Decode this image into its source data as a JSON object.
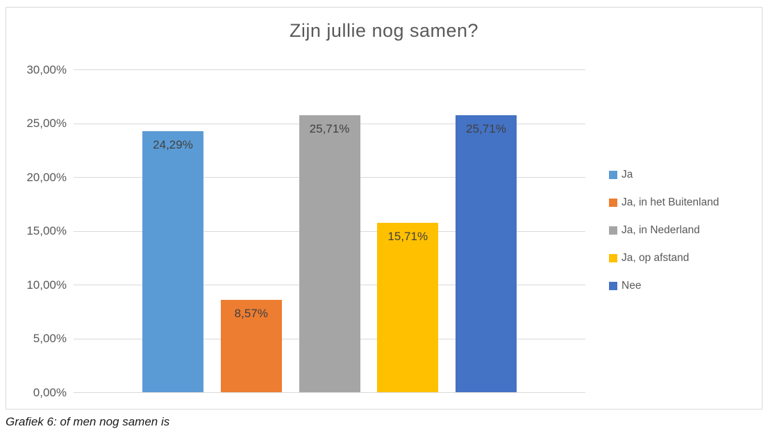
{
  "title": "Zijn jullie nog samen?",
  "caption": "Grafiek 6: of men nog samen is",
  "chart_data": {
    "type": "bar",
    "title": "Zijn jullie nog samen?",
    "categories": [
      ""
    ],
    "series": [
      {
        "name": "Ja",
        "value": 24.29,
        "label": "24,29%",
        "color": "#5B9BD5"
      },
      {
        "name": "Ja, in het Buitenland",
        "value": 8.57,
        "label": "8,57%",
        "color": "#ED7D31"
      },
      {
        "name": "Ja, in Nederland",
        "value": 25.71,
        "label": "25,71%",
        "color": "#A5A5A5"
      },
      {
        "name": "Ja, op afstand",
        "value": 15.71,
        "label": "15,71%",
        "color": "#FFC000"
      },
      {
        "name": "Nee",
        "value": 25.71,
        "label": "25,71%",
        "color": "#4472C4"
      }
    ],
    "xlabel": "",
    "ylabel": "",
    "ylim": [
      0,
      30
    ],
    "ytick_step": 5,
    "ytick_labels": [
      "0,00%",
      "5,00%",
      "10,00%",
      "15,00%",
      "20,00%",
      "25,00%",
      "30,00%"
    ],
    "grid": true,
    "legend_position": "right",
    "legend_entries": [
      "Ja",
      "Ja, in het Buitenland",
      "Ja, in Nederland",
      "Ja, op afstand",
      "Nee"
    ]
  },
  "colors": {
    "bar_blue": "#5B9BD5",
    "bar_orange": "#ED7D31",
    "bar_gray": "#A5A5A5",
    "bar_yellow": "#FFC000",
    "bar_dark_blue": "#4472C4",
    "gridline": "#D9D9D9",
    "frame_border": "#D9D9D9",
    "title_text": "#595959",
    "axis_text": "#595959",
    "data_label_text": "#404040",
    "legend_text": "#595959",
    "caption_text": "#1A1A1A",
    "background": "#FFFFFF"
  }
}
